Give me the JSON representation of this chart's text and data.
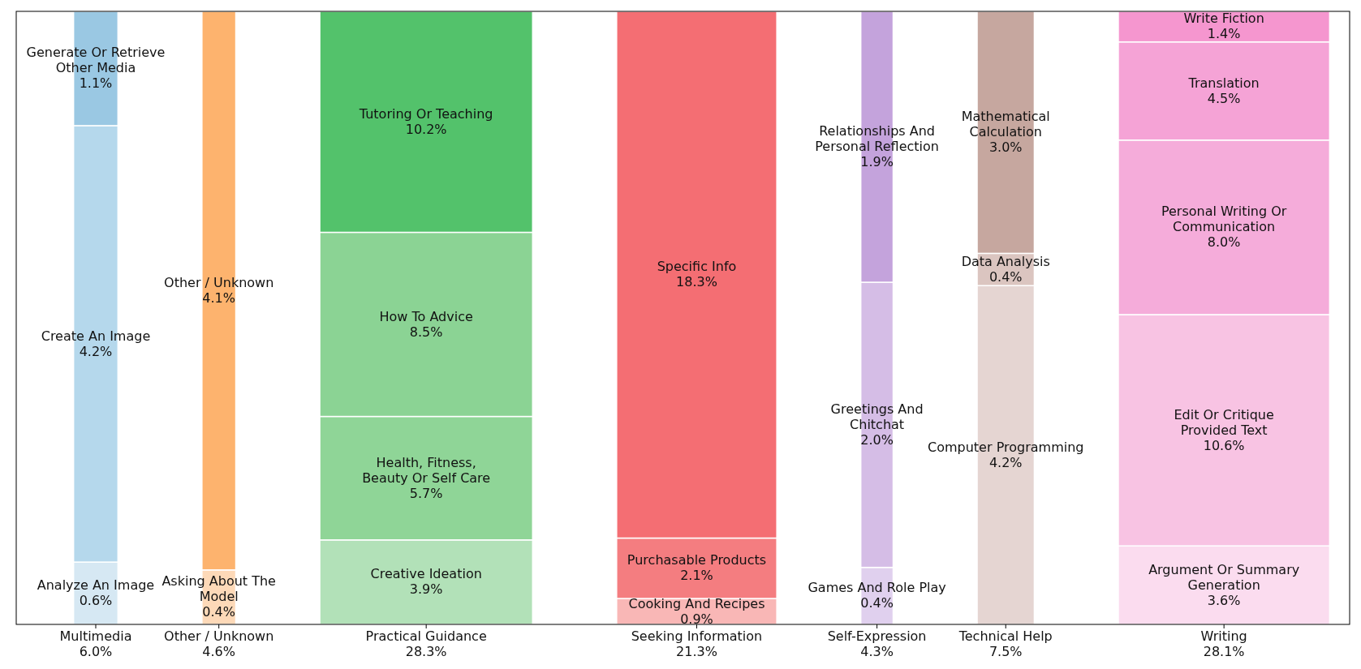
{
  "chart_data": {
    "type": "other",
    "categories": [
      "Multimedia",
      "Other / Unknown",
      "Practical Guidance",
      "Seeking Information",
      "Self-Expression",
      "Technical Help",
      "Writing"
    ],
    "totals": [
      "6.0%",
      "4.6%",
      "28.3%",
      "21.3%",
      "4.3%",
      "7.5%",
      "28.1%"
    ],
    "series": [
      {
        "name": "Analyze An Image",
        "color": "#d6e8f3",
        "values": [
          0.6,
          null,
          null,
          null,
          null,
          null,
          null
        ],
        "value_labels": [
          "0.6%",
          null,
          null,
          null,
          null,
          null,
          null
        ]
      },
      {
        "name": "Create An Image",
        "color": "#b5d8ec",
        "values": [
          4.2,
          null,
          null,
          null,
          null,
          null,
          null
        ],
        "value_labels": [
          "4.2%",
          null,
          null,
          null,
          null,
          null,
          null
        ]
      },
      {
        "name": "Generate Or Retrieve Other Media",
        "color": "#9ac8e3",
        "values": [
          1.1,
          null,
          null,
          null,
          null,
          null,
          null
        ],
        "value_labels": [
          "1.1%",
          null,
          null,
          null,
          null,
          null,
          null
        ]
      },
      {
        "name": "Asking About The Model",
        "color": "#fdd9b8",
        "values": [
          null,
          0.4,
          null,
          null,
          null,
          null,
          null
        ],
        "value_labels": [
          null,
          "0.4%",
          null,
          null,
          null,
          null,
          null
        ]
      },
      {
        "name": "Other / Unknown",
        "color": "#fdb36e",
        "values": [
          null,
          4.1,
          null,
          null,
          null,
          null,
          null
        ],
        "value_labels": [
          null,
          "4.1%",
          null,
          null,
          null,
          null,
          null
        ]
      },
      {
        "name": "Creative Ideation",
        "color": "#b2e1b8",
        "values": [
          null,
          null,
          3.9,
          null,
          null,
          null,
          null
        ],
        "value_labels": [
          null,
          null,
          "3.9%",
          null,
          null,
          null,
          null
        ]
      },
      {
        "name": "Health, Fitness, Beauty Or Self Care",
        "color": "#8fd597",
        "values": [
          null,
          null,
          5.7,
          null,
          null,
          null,
          null
        ],
        "value_labels": [
          null,
          null,
          "5.7%",
          null,
          null,
          null,
          null
        ]
      },
      {
        "name": "How To Advice",
        "color": "#8bd394",
        "values": [
          null,
          null,
          8.5,
          null,
          null,
          null,
          null
        ],
        "value_labels": [
          null,
          null,
          "8.5%",
          null,
          null,
          null,
          null
        ]
      },
      {
        "name": "Tutoring Or Teaching",
        "color": "#53c26b",
        "values": [
          null,
          null,
          10.2,
          null,
          null,
          null,
          null
        ],
        "value_labels": [
          null,
          null,
          "10.2%",
          null,
          null,
          null,
          null
        ]
      },
      {
        "name": "Cooking And Recipes",
        "color": "#f9b7b6",
        "values": [
          null,
          null,
          null,
          0.9,
          null,
          null,
          null
        ],
        "value_labels": [
          null,
          null,
          null,
          "0.9%",
          null,
          null,
          null
        ]
      },
      {
        "name": "Purchasable Products",
        "color": "#f47d80",
        "values": [
          null,
          null,
          null,
          2.1,
          null,
          null,
          null
        ],
        "value_labels": [
          null,
          null,
          null,
          "2.1%",
          null,
          null,
          null
        ]
      },
      {
        "name": "Specific Info",
        "color": "#f46e73",
        "values": [
          null,
          null,
          null,
          18.3,
          null,
          null,
          null
        ],
        "value_labels": [
          null,
          null,
          null,
          "18.3%",
          null,
          null,
          null
        ]
      },
      {
        "name": "Games And Role Play",
        "color": "#e0d0ee",
        "values": [
          null,
          null,
          null,
          null,
          0.4,
          null,
          null
        ],
        "value_labels": [
          null,
          null,
          null,
          null,
          "0.4%",
          null,
          null
        ]
      },
      {
        "name": "Greetings And Chitchat",
        "color": "#d5bde6",
        "values": [
          null,
          null,
          null,
          null,
          2.0,
          null,
          null
        ],
        "value_labels": [
          null,
          null,
          null,
          null,
          "2.0%",
          null,
          null
        ]
      },
      {
        "name": "Relationships And Personal Reflection",
        "color": "#c4a3dc",
        "values": [
          null,
          null,
          null,
          null,
          1.9,
          null,
          null
        ],
        "value_labels": [
          null,
          null,
          null,
          null,
          "1.9%",
          null,
          null
        ]
      },
      {
        "name": "Computer Programming",
        "color": "#e5d5d2",
        "values": [
          null,
          null,
          null,
          null,
          null,
          4.2,
          null
        ],
        "value_labels": [
          null,
          null,
          null,
          null,
          null,
          "4.2%",
          null
        ]
      },
      {
        "name": "Data Analysis",
        "color": "#dbc5c0",
        "values": [
          null,
          null,
          null,
          null,
          null,
          0.4,
          null
        ],
        "value_labels": [
          null,
          null,
          null,
          null,
          null,
          "0.4%",
          null
        ]
      },
      {
        "name": "Mathematical Calculation",
        "color": "#c6a79f",
        "values": [
          null,
          null,
          null,
          null,
          null,
          3.0,
          null
        ],
        "value_labels": [
          null,
          null,
          null,
          null,
          null,
          "3.0%",
          null
        ]
      },
      {
        "name": "Argument Or Summary Generation",
        "color": "#fbdcef",
        "values": [
          null,
          null,
          null,
          null,
          null,
          null,
          3.6
        ],
        "value_labels": [
          null,
          null,
          null,
          null,
          null,
          null,
          "3.6%"
        ]
      },
      {
        "name": "Edit Or Critique Provided Text",
        "color": "#f8c3e3",
        "values": [
          null,
          null,
          null,
          null,
          null,
          null,
          10.6
        ],
        "value_labels": [
          null,
          null,
          null,
          null,
          null,
          null,
          "10.6%"
        ]
      },
      {
        "name": "Personal Writing Or Communication",
        "color": "#f5acda",
        "values": [
          null,
          null,
          null,
          null,
          null,
          null,
          8.0
        ],
        "value_labels": [
          null,
          null,
          null,
          null,
          null,
          null,
          "8.0%"
        ]
      },
      {
        "name": "Translation",
        "color": "#f5a3d6",
        "values": [
          null,
          null,
          null,
          null,
          null,
          null,
          4.5
        ],
        "value_labels": [
          null,
          null,
          null,
          null,
          null,
          null,
          "4.5%"
        ]
      },
      {
        "name": "Write Fiction",
        "color": "#f596cf",
        "values": [
          null,
          null,
          null,
          null,
          null,
          null,
          1.4
        ],
        "value_labels": [
          null,
          null,
          null,
          null,
          null,
          null,
          "1.4%"
        ]
      }
    ]
  }
}
